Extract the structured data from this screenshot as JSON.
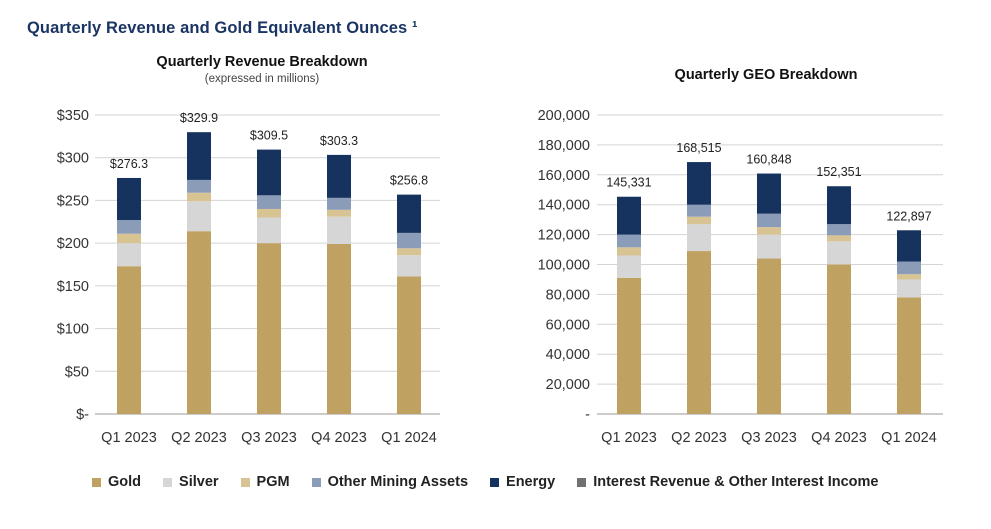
{
  "page_title": "Quarterly Revenue and Gold Equivalent Ounces ¹",
  "colors": {
    "Gold": "#bfa261",
    "Silver": "#d6d6d6",
    "PGM": "#d8c393",
    "Other Mining Assets": "#8b9cb8",
    "Energy": "#16335f",
    "Interest Revenue & Other Interest Income": "#707070"
  },
  "legend": [
    {
      "label": "Gold",
      "color": "#bfa261"
    },
    {
      "label": "Silver",
      "color": "#d6d6d6"
    },
    {
      "label": "PGM",
      "color": "#d8c393"
    },
    {
      "label": "Other Mining Assets",
      "color": "#8b9cb8"
    },
    {
      "label": "Energy",
      "color": "#16335f"
    },
    {
      "label": "Interest Revenue & Other Interest Income",
      "color": "#707070"
    }
  ],
  "chart_data": [
    {
      "type": "bar",
      "stacked": true,
      "title": "Quarterly Revenue Breakdown",
      "subtitle": "(expressed in millions)",
      "xlabel": "",
      "ylabel": "",
      "ylim": [
        0,
        350
      ],
      "yticks": [
        0,
        50,
        100,
        150,
        200,
        250,
        300,
        350
      ],
      "ytick_labels": [
        "$-",
        "$50",
        "$100",
        "$150",
        "$200",
        "$250",
        "$300",
        "$350"
      ],
      "grid": true,
      "categories": [
        "Q1 2023",
        "Q2 2023",
        "Q3 2023",
        "Q4 2023",
        "Q1 2024"
      ],
      "totals": [
        276.3,
        329.9,
        309.5,
        303.3,
        256.8
      ],
      "total_labels": [
        "$276.3",
        "$329.9",
        "$309.5",
        "$303.3",
        "$256.8"
      ],
      "series": [
        {
          "name": "Gold",
          "values": [
            173,
            214,
            200,
            199,
            161
          ]
        },
        {
          "name": "Silver",
          "values": [
            27,
            35,
            30,
            32,
            25
          ]
        },
        {
          "name": "PGM",
          "values": [
            11,
            10,
            10,
            8,
            8
          ]
        },
        {
          "name": "Other Mining Assets",
          "values": [
            16,
            15,
            16,
            14,
            18
          ]
        },
        {
          "name": "Energy",
          "values": [
            49.3,
            55.9,
            53.5,
            50.3,
            44.8
          ]
        },
        {
          "name": "Interest Revenue & Other Interest Income",
          "values": [
            0,
            0,
            0,
            0,
            0
          ]
        }
      ]
    },
    {
      "type": "bar",
      "stacked": true,
      "title": "Quarterly GEO Breakdown",
      "xlabel": "",
      "ylabel": "",
      "ylim": [
        0,
        200000
      ],
      "yticks": [
        0,
        20000,
        40000,
        60000,
        80000,
        100000,
        120000,
        140000,
        160000,
        180000,
        200000
      ],
      "ytick_labels": [
        "-",
        "20,000",
        "40,000",
        "60,000",
        "80,000",
        "100,000",
        "120,000",
        "140,000",
        "160,000",
        "180,000",
        "200,000"
      ],
      "grid": true,
      "categories": [
        "Q1 2023",
        "Q2 2023",
        "Q3 2023",
        "Q4 2023",
        "Q1 2024"
      ],
      "totals": [
        145331,
        168515,
        160848,
        152351,
        122897
      ],
      "total_labels": [
        "145,331",
        "168,515",
        "160,848",
        "152,351",
        "122,897"
      ],
      "series": [
        {
          "name": "Gold",
          "values": [
            91000,
            109000,
            104000,
            100000,
            78000
          ]
        },
        {
          "name": "Silver",
          "values": [
            15000,
            18000,
            16000,
            15500,
            12000
          ]
        },
        {
          "name": "PGM",
          "values": [
            5500,
            5000,
            5000,
            4000,
            3500
          ]
        },
        {
          "name": "Other Mining Assets",
          "values": [
            8500,
            8000,
            9000,
            7500,
            8500
          ]
        },
        {
          "name": "Energy",
          "values": [
            25331,
            28515,
            26848,
            25351,
            20897
          ]
        },
        {
          "name": "Interest Revenue & Other Interest Income",
          "values": [
            0,
            0,
            0,
            0,
            0
          ]
        }
      ]
    }
  ]
}
